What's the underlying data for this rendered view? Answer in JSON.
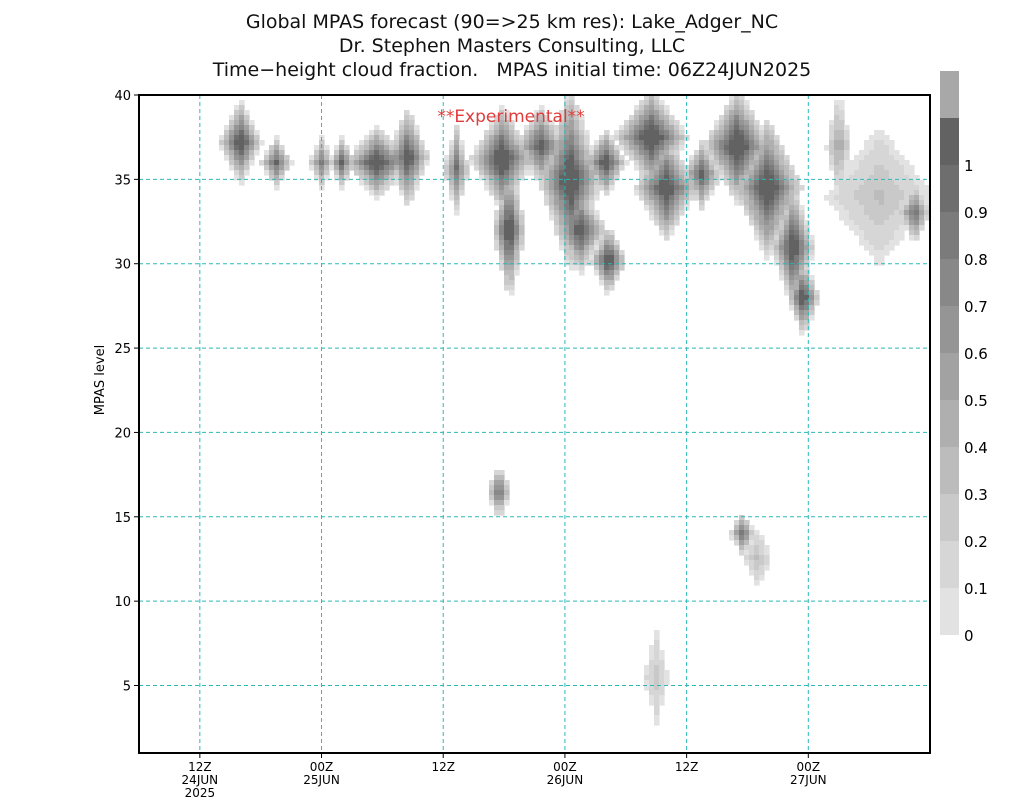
{
  "chart_data": {
    "type": "heatmap",
    "title": "Global MPAS forecast (90=>25 km res): Lake_Adger_NC",
    "subtitle_1": "Dr. Stephen Masters Consulting, LLC",
    "subtitle_2": "Time−height cloud fraction.   MPAS initial time: 06Z24JUN2025",
    "annotation": "**Experimental**",
    "ylabel": "MPAS level",
    "xlabel": "",
    "x_units": "hours since 06Z24JUN2025",
    "xlim": [
      0,
      78
    ],
    "ylim": [
      1,
      40
    ],
    "x_ticks": [
      {
        "x": 6,
        "lines": [
          "12Z",
          "24JUN",
          "2025"
        ]
      },
      {
        "x": 18,
        "lines": [
          "00Z",
          "25JUN"
        ]
      },
      {
        "x": 30,
        "lines": [
          "12Z"
        ]
      },
      {
        "x": 42,
        "lines": [
          "00Z",
          "26JUN"
        ]
      },
      {
        "x": 54,
        "lines": [
          "12Z"
        ]
      },
      {
        "x": 66,
        "lines": [
          "00Z",
          "27JUN"
        ]
      }
    ],
    "y_ticks": [
      5,
      10,
      15,
      20,
      25,
      30,
      35,
      40
    ],
    "grid": true,
    "colorbar": {
      "levels": [
        0,
        0.1,
        0.2,
        0.3,
        0.4,
        0.5,
        0.6,
        0.7,
        0.8,
        0.9,
        1
      ],
      "labels": [
        "0",
        "0.1",
        "0.2",
        "0.3",
        "0.4",
        "0.5",
        "0.6",
        "0.7",
        "0.8",
        "0.9",
        "1"
      ],
      "colors": [
        "#e2e2e2",
        "#d6d6d6",
        "#c9c9c9",
        "#bcbcbc",
        "#afafaf",
        "#a2a2a2",
        "#959595",
        "#888888",
        "#7b7b7b",
        "#6e6e6e",
        "#626262",
        "#a8a8a8"
      ]
    },
    "cloud_features": [
      {
        "t": 10.0,
        "lvl": 37.2,
        "rt": 1.6,
        "rl": 1.9,
        "peak": 0.95
      },
      {
        "t": 13.5,
        "lvl": 36.0,
        "rt": 1.2,
        "rl": 1.2,
        "peak": 0.75
      },
      {
        "t": 18.0,
        "lvl": 36.0,
        "rt": 1.0,
        "rl": 1.2,
        "peak": 0.6
      },
      {
        "t": 20.0,
        "lvl": 36.0,
        "rt": 1.0,
        "rl": 1.2,
        "peak": 0.75
      },
      {
        "t": 23.5,
        "lvl": 36.0,
        "rt": 2.6,
        "rl": 1.6,
        "peak": 0.95
      },
      {
        "t": 26.5,
        "lvl": 36.3,
        "rt": 1.6,
        "rl": 2.3,
        "peak": 0.9
      },
      {
        "t": 31.3,
        "lvl": 35.6,
        "rt": 1.0,
        "rl": 2.0,
        "peak": 0.7
      },
      {
        "t": 35.8,
        "lvl": 36.2,
        "rt": 2.4,
        "rl": 2.4,
        "peak": 1.0
      },
      {
        "t": 36.5,
        "lvl": 32.0,
        "rt": 1.3,
        "rl": 3.2,
        "peak": 0.95
      },
      {
        "t": 39.6,
        "lvl": 37.0,
        "rt": 2.0,
        "rl": 1.8,
        "peak": 0.85
      },
      {
        "t": 42.5,
        "lvl": 35.0,
        "rt": 2.4,
        "rl": 4.2,
        "peak": 1.0
      },
      {
        "t": 43.5,
        "lvl": 32.0,
        "rt": 2.0,
        "rl": 2.0,
        "peak": 0.9
      },
      {
        "t": 46.0,
        "lvl": 36.0,
        "rt": 1.6,
        "rl": 1.6,
        "peak": 0.9
      },
      {
        "t": 46.3,
        "lvl": 30.2,
        "rt": 1.4,
        "rl": 1.6,
        "peak": 0.95
      },
      {
        "t": 50.5,
        "lvl": 37.5,
        "rt": 2.8,
        "rl": 2.2,
        "peak": 1.0
      },
      {
        "t": 52.0,
        "lvl": 34.5,
        "rt": 2.4,
        "rl": 2.4,
        "peak": 0.95
      },
      {
        "t": 55.5,
        "lvl": 35.3,
        "rt": 1.5,
        "rl": 1.6,
        "peak": 0.8
      },
      {
        "t": 59.0,
        "lvl": 37.0,
        "rt": 2.6,
        "rl": 2.6,
        "peak": 1.0
      },
      {
        "t": 62.0,
        "lvl": 34.5,
        "rt": 2.6,
        "rl": 3.2,
        "peak": 1.0
      },
      {
        "t": 64.5,
        "lvl": 31.0,
        "rt": 1.6,
        "rl": 3.0,
        "peak": 0.95
      },
      {
        "t": 65.5,
        "lvl": 28.0,
        "rt": 1.2,
        "rl": 1.8,
        "peak": 0.95
      },
      {
        "t": 69.0,
        "lvl": 37.0,
        "rt": 1.0,
        "rl": 2.6,
        "peak": 0.4
      },
      {
        "t": 73.0,
        "lvl": 34.0,
        "rt": 4.5,
        "rl": 3.5,
        "peak": 0.25
      },
      {
        "t": 76.5,
        "lvl": 33.0,
        "rt": 1.2,
        "rl": 1.4,
        "peak": 0.75
      },
      {
        "t": 35.5,
        "lvl": 16.5,
        "rt": 0.9,
        "rl": 1.3,
        "peak": 0.75
      },
      {
        "t": 59.5,
        "lvl": 14.0,
        "rt": 1.0,
        "rl": 1.0,
        "peak": 0.7
      },
      {
        "t": 61.0,
        "lvl": 12.5,
        "rt": 1.2,
        "rl": 1.5,
        "peak": 0.25
      },
      {
        "t": 51.0,
        "lvl": 5.5,
        "rt": 1.1,
        "rl": 2.5,
        "peak": 0.2
      }
    ]
  }
}
